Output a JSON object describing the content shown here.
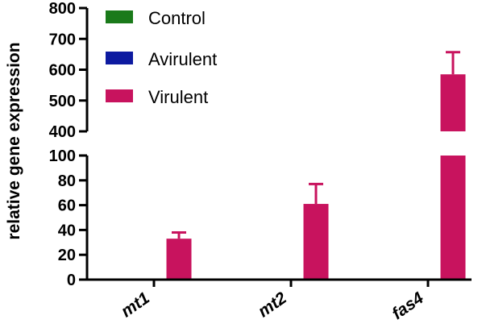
{
  "chart_data": {
    "type": "bar",
    "categories": [
      "mt1",
      "mt2",
      "fas4"
    ],
    "ylabel": "relative gene expression",
    "axis_break": {
      "lower": [
        0,
        100
      ],
      "upper": [
        400,
        800
      ]
    },
    "ticks_lower": [
      "0",
      "20",
      "40",
      "60",
      "80",
      "100"
    ],
    "ticks_upper": [
      "400",
      "500",
      "600",
      "700",
      "800"
    ],
    "legend_position": "top-left",
    "series": [
      {
        "name": "Control",
        "color": "#1a7a1a",
        "values": [
          0,
          0,
          0
        ],
        "errors": [
          0,
          0,
          0
        ]
      },
      {
        "name": "Avirulent",
        "color": "#0d1aa0",
        "values": [
          0,
          0,
          0
        ],
        "errors": [
          0,
          0,
          0
        ]
      },
      {
        "name": "Virulent",
        "color": "#c8135e",
        "values": [
          33,
          61,
          585
        ],
        "errors": [
          5,
          16,
          72
        ]
      }
    ]
  }
}
